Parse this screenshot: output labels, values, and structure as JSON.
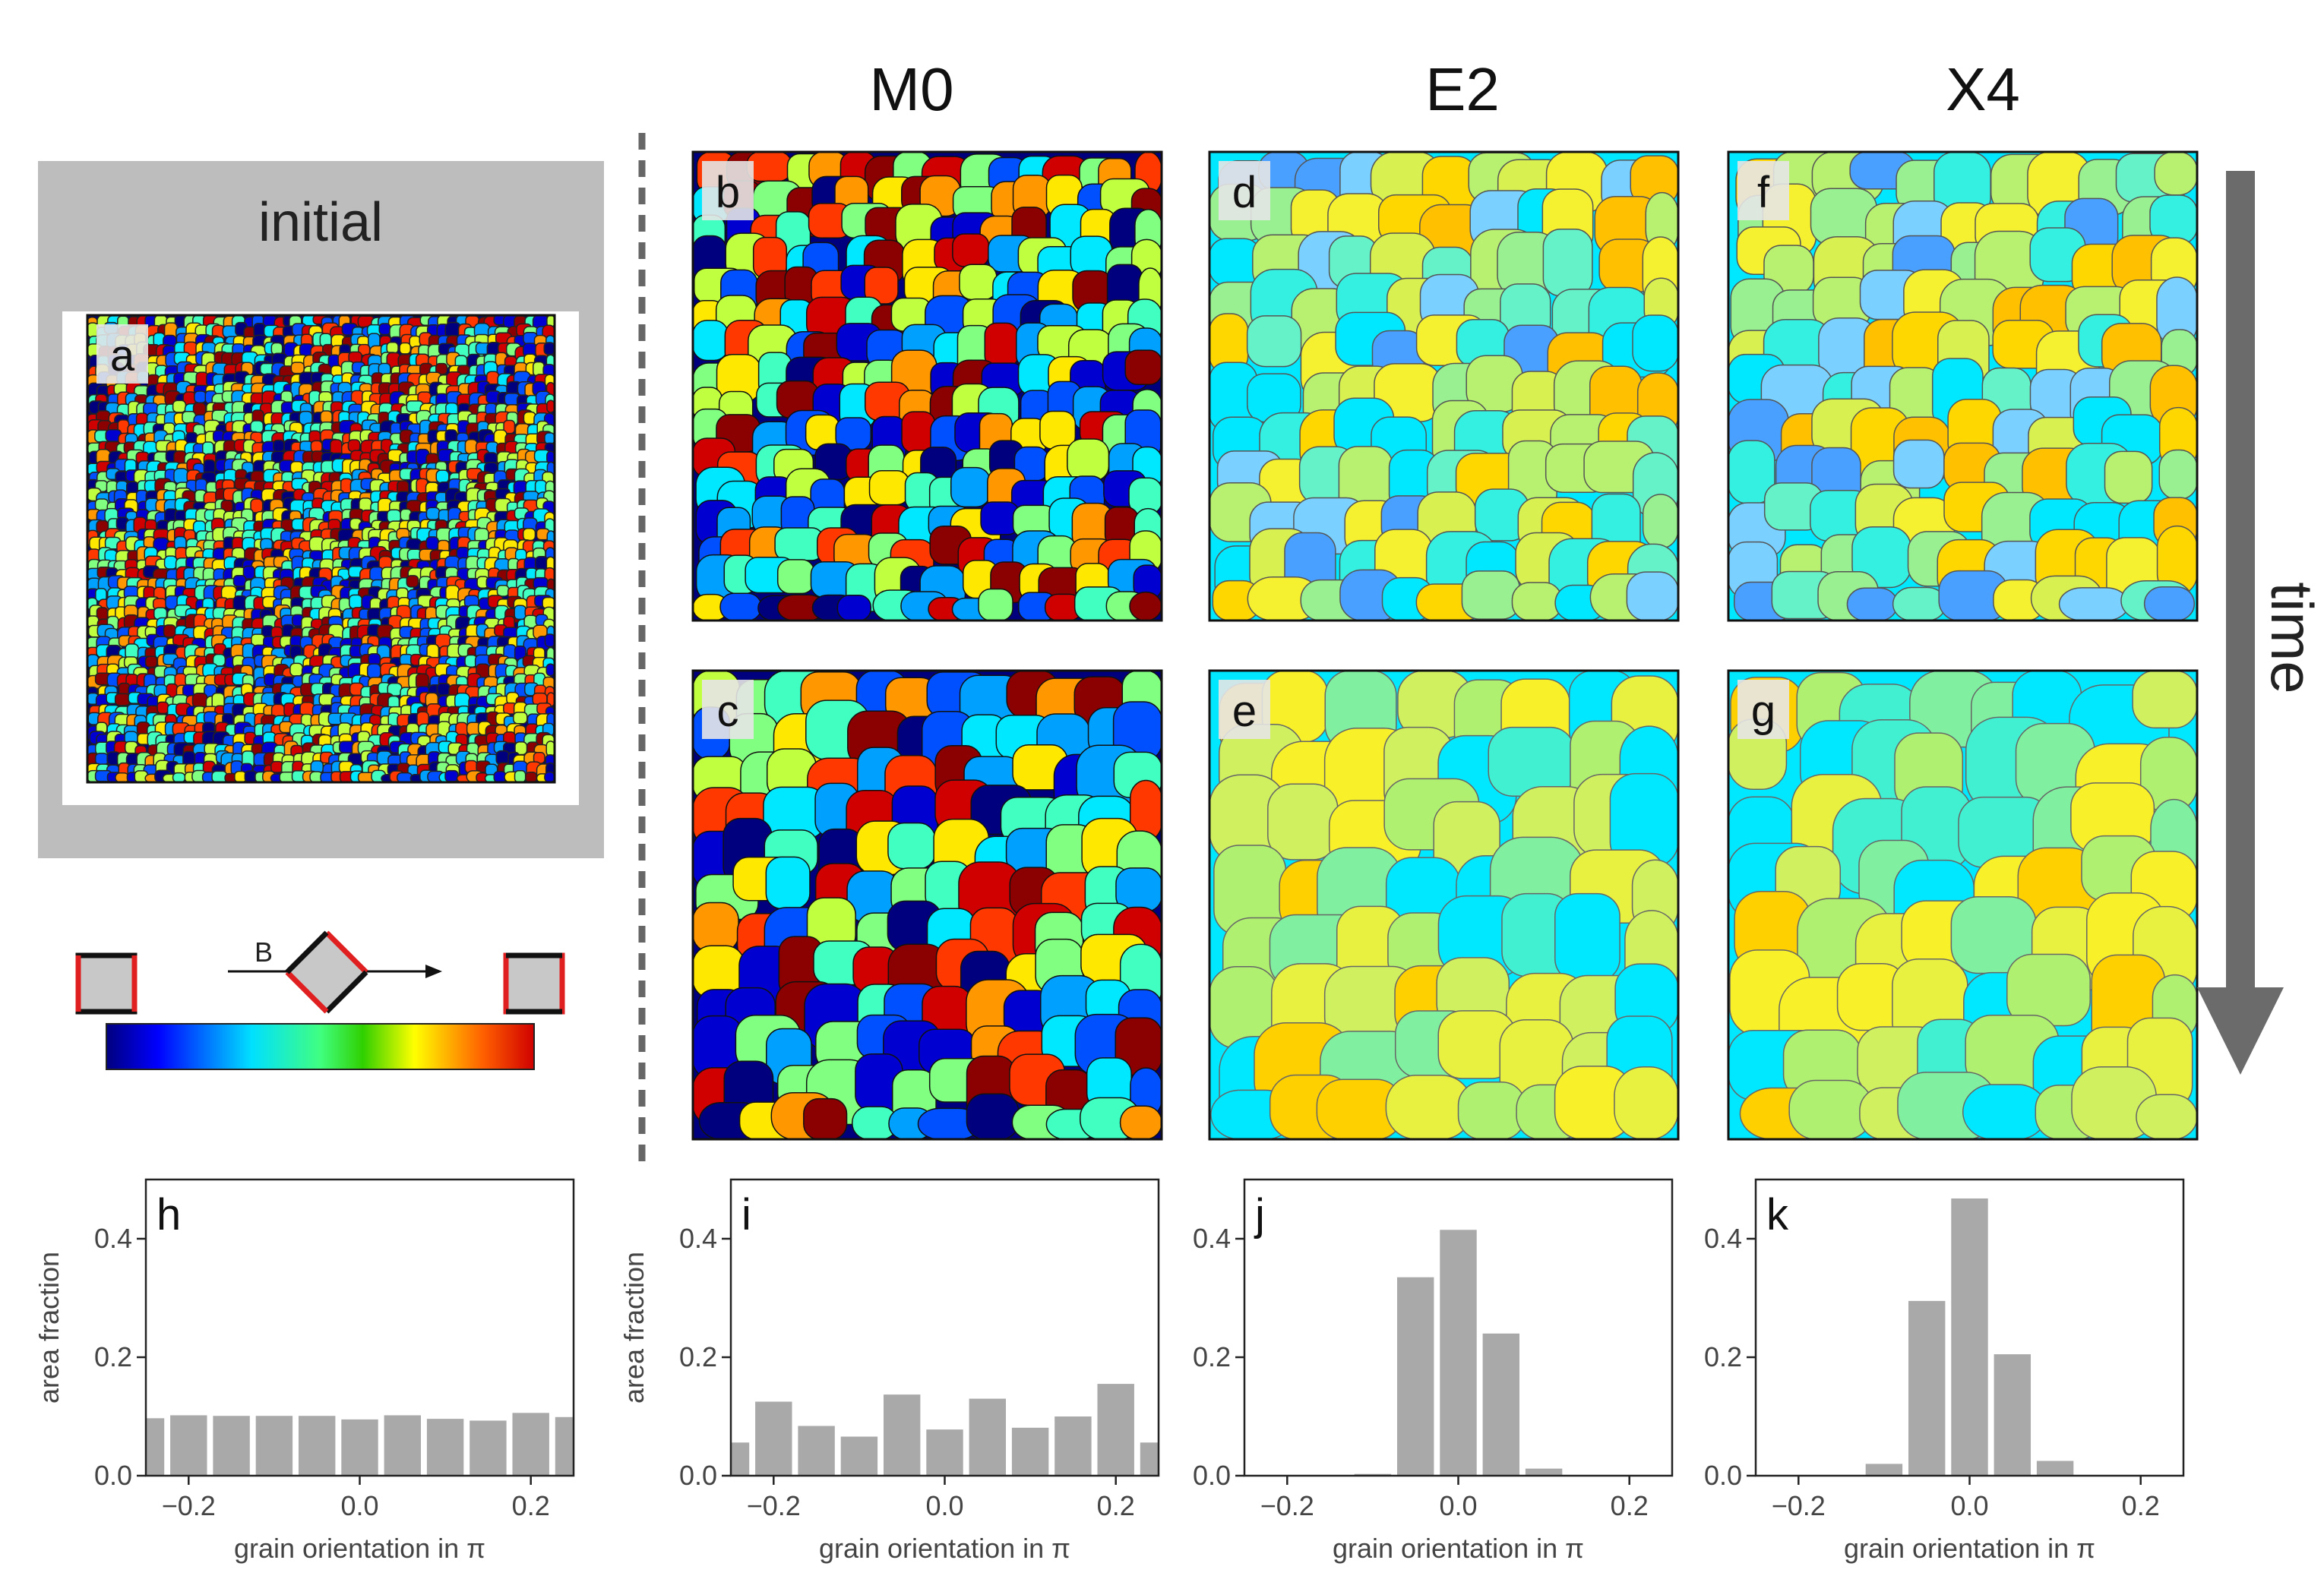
{
  "figure": {
    "column_headers": [
      "M0",
      "E2",
      "X4"
    ],
    "initial_label": "initial",
    "time_label": "time",
    "panel_labels": {
      "a": "a",
      "b": "b",
      "c": "c",
      "d": "d",
      "e": "e",
      "f": "f",
      "g": "g",
      "h": "h",
      "i": "i",
      "j": "j",
      "k": "k"
    },
    "field_label": "B",
    "colors": {
      "panel_bg": "#bdbdbd",
      "arrow": "#6b6b6b",
      "bar": "#a9a9a9",
      "dash": "#666666",
      "square_edge_red": "#e02020"
    }
  },
  "chart_data": [
    {
      "type": "bar",
      "panel": "h",
      "xlabel": "grain orientation in π",
      "ylabel": "area fraction",
      "xlim": [
        -0.25,
        0.25
      ],
      "ylim": [
        0,
        0.5
      ],
      "xticks": [
        "−0.2",
        "0.0",
        "0.2"
      ],
      "yticks": [
        "0.0",
        "0.2",
        "0.4"
      ],
      "x": [
        -0.25,
        -0.2,
        -0.15,
        -0.1,
        -0.05,
        0.0,
        0.05,
        0.1,
        0.15,
        0.2,
        0.25
      ],
      "values": [
        0.097,
        0.102,
        0.101,
        0.101,
        0.101,
        0.095,
        0.102,
        0.096,
        0.093,
        0.106,
        0.099
      ]
    },
    {
      "type": "bar",
      "panel": "i",
      "xlabel": "grain orientation in π",
      "ylabel": "area fraction",
      "xlim": [
        -0.25,
        0.25
      ],
      "ylim": [
        0,
        0.5
      ],
      "xticks": [
        "−0.2",
        "0.0",
        "0.2"
      ],
      "yticks": [
        "0.0",
        "0.2",
        "0.4"
      ],
      "x": [
        -0.25,
        -0.2,
        -0.15,
        -0.1,
        -0.05,
        0.0,
        0.05,
        0.1,
        0.15,
        0.2,
        0.25
      ],
      "values": [
        0.056,
        0.125,
        0.084,
        0.066,
        0.137,
        0.078,
        0.13,
        0.081,
        0.1,
        0.155,
        0.056
      ]
    },
    {
      "type": "bar",
      "panel": "j",
      "xlabel": "grain orientation in π",
      "ylabel": "",
      "xlim": [
        -0.25,
        0.25
      ],
      "ylim": [
        0,
        0.5
      ],
      "xticks": [
        "−0.2",
        "0.0",
        "0.2"
      ],
      "yticks": [
        "0.0",
        "0.2",
        "0.4"
      ],
      "x": [
        -0.1,
        -0.05,
        0.0,
        0.05,
        0.1
      ],
      "values": [
        0.003,
        0.335,
        0.415,
        0.24,
        0.012
      ]
    },
    {
      "type": "bar",
      "panel": "k",
      "xlabel": "grain orientation in π",
      "ylabel": "",
      "xlim": [
        -0.25,
        0.25
      ],
      "ylim": [
        0,
        0.5
      ],
      "xticks": [
        "−0.2",
        "0.0",
        "0.2"
      ],
      "yticks": [
        "0.0",
        "0.2",
        "0.4"
      ],
      "x": [
        -0.1,
        -0.05,
        0.0,
        0.05,
        0.1
      ],
      "values": [
        0.02,
        0.295,
        0.468,
        0.205,
        0.025
      ]
    }
  ]
}
